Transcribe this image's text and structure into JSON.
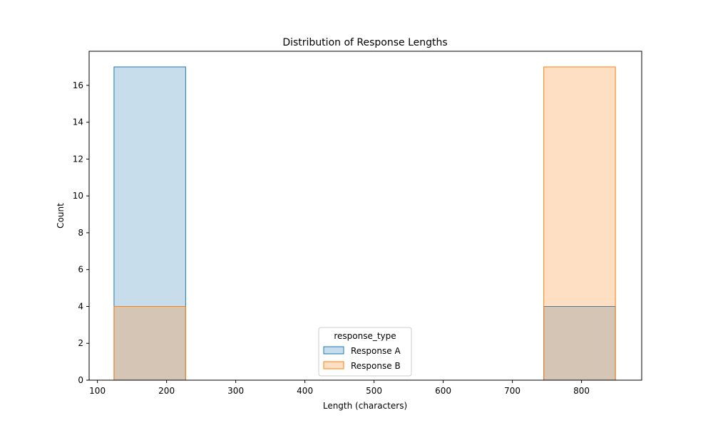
{
  "chart_data": {
    "type": "bar",
    "title": "Distribution of Response Lengths",
    "xlabel": "Length (characters)",
    "ylabel": "Count",
    "xlim": [
      88,
      887
    ],
    "ylim": [
      0,
      17.85
    ],
    "xticks": [
      100,
      200,
      300,
      400,
      500,
      600,
      700,
      800
    ],
    "yticks": [
      0,
      2,
      4,
      6,
      8,
      10,
      12,
      14,
      16
    ],
    "bin_edges": [
      124,
      227.57,
      331.14,
      434.71,
      538.29,
      641.86,
      745.43,
      849
    ],
    "series": [
      {
        "name": "Response A",
        "counts": [
          17,
          0,
          0,
          0,
          0,
          0,
          4
        ],
        "color": "#1f77b4",
        "fill": "#1f77b4",
        "fill_opacity": 0.25
      },
      {
        "name": "Response B",
        "counts": [
          4,
          0,
          0,
          0,
          0,
          0,
          17
        ],
        "color": "#ff7f0e",
        "fill": "#ff7f0e",
        "fill_opacity": 0.25
      }
    ],
    "legend": {
      "title": "response_type",
      "placement": "bottom-center"
    },
    "grid": false
  }
}
